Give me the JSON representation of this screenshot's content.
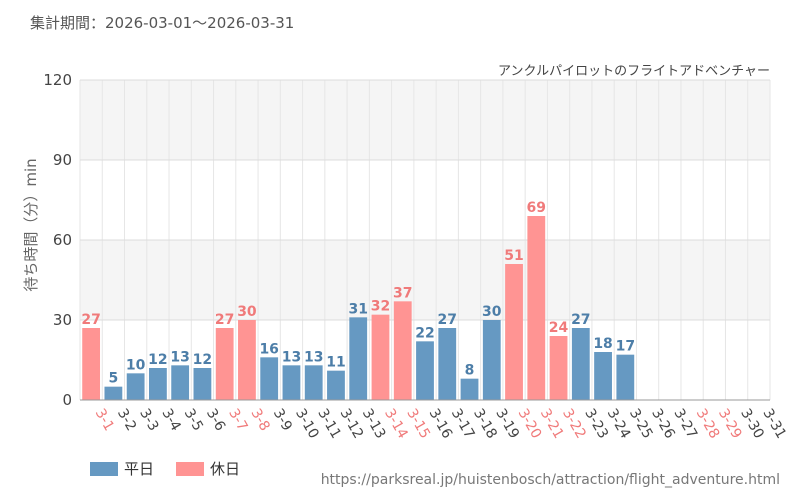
{
  "period_text": "集計期間：2026-03-01～2026-03-31",
  "source_url": "https://parksreal.jp/huistenbosch/attraction/flight_adventure.html",
  "colors": {
    "weekday": "#6699c2",
    "holiday": "#ff9493",
    "weekday_label": "#4d7ea8",
    "holiday_label": "#f07a7a"
  },
  "legend": [
    {
      "label": "平日",
      "color": "#6699c2"
    },
    {
      "label": "休日",
      "color": "#ff9493"
    }
  ],
  "chart_data": {
    "type": "bar",
    "title": "アンクルパイロットのフライトアドベンチャー",
    "ylabel": "待ち時間（分）min",
    "xlabel": "",
    "ylim": [
      0,
      120
    ],
    "yticks": [
      0,
      30,
      60,
      90,
      120
    ],
    "grid": true,
    "legend_position": "bottom-left",
    "categories": [
      "3-1",
      "3-2",
      "3-3",
      "3-4",
      "3-5",
      "3-6",
      "3-7",
      "3-8",
      "3-9",
      "3-10",
      "3-11",
      "3-12",
      "3-13",
      "3-14",
      "3-15",
      "3-16",
      "3-17",
      "3-18",
      "3-19",
      "3-20",
      "3-21",
      "3-22",
      "3-23",
      "3-24",
      "3-25",
      "3-26",
      "3-27",
      "3-28",
      "3-29",
      "3-30",
      "3-31"
    ],
    "values": [
      27,
      5,
      10,
      12,
      13,
      12,
      27,
      30,
      16,
      13,
      13,
      11,
      31,
      32,
      37,
      22,
      27,
      8,
      30,
      51,
      69,
      24,
      27,
      18,
      17,
      null,
      null,
      null,
      null,
      null,
      null
    ],
    "day_type": [
      "holiday",
      "weekday",
      "weekday",
      "weekday",
      "weekday",
      "weekday",
      "holiday",
      "holiday",
      "weekday",
      "weekday",
      "weekday",
      "weekday",
      "weekday",
      "holiday",
      "holiday",
      "weekday",
      "weekday",
      "weekday",
      "weekday",
      "holiday",
      "holiday",
      "holiday",
      "weekday",
      "weekday",
      "weekday",
      "weekday",
      "weekday",
      "holiday",
      "holiday",
      "weekday",
      "weekday"
    ]
  }
}
